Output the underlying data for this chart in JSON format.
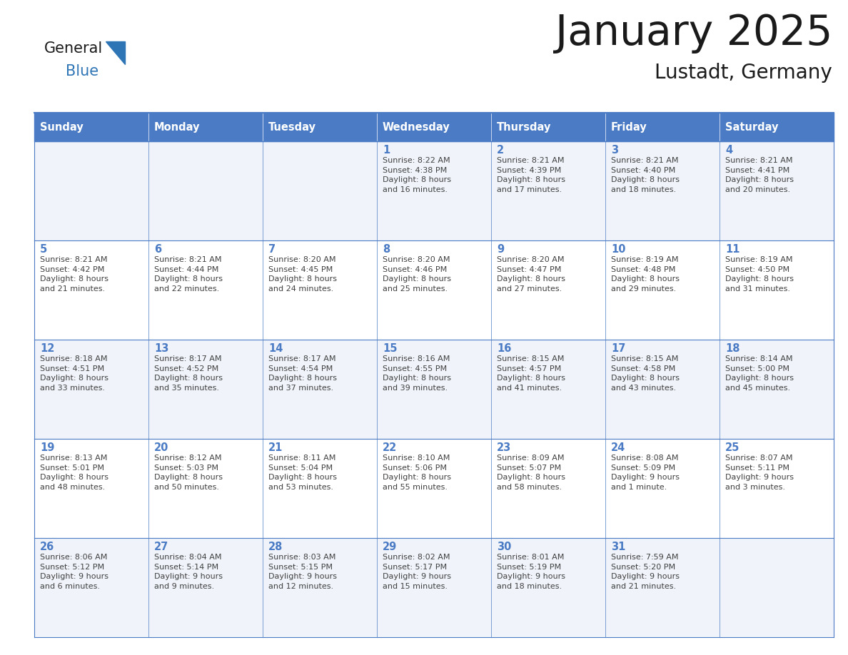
{
  "title": "January 2025",
  "subtitle": "Lustadt, Germany",
  "days_of_week": [
    "Sunday",
    "Monday",
    "Tuesday",
    "Wednesday",
    "Thursday",
    "Friday",
    "Saturday"
  ],
  "header_bg": "#4A7BC4",
  "header_text": "#FFFFFF",
  "cell_bg_light": "#F0F4FA",
  "cell_bg_white": "#FFFFFF",
  "grid_color": "#4A7BC4",
  "day_num_color": "#4A7BC4",
  "cell_text_color": "#404040",
  "title_color": "#1a1a1a",
  "logo_general_color": "#1a1a1a",
  "logo_blue_color": "#2E75B6",
  "logo_triangle_color": "#2E75B6",
  "figsize": [
    11.88,
    9.18
  ],
  "dpi": 100,
  "calendar": [
    [
      {
        "day": "",
        "text": ""
      },
      {
        "day": "",
        "text": ""
      },
      {
        "day": "",
        "text": ""
      },
      {
        "day": "1",
        "text": "Sunrise: 8:22 AM\nSunset: 4:38 PM\nDaylight: 8 hours\nand 16 minutes."
      },
      {
        "day": "2",
        "text": "Sunrise: 8:21 AM\nSunset: 4:39 PM\nDaylight: 8 hours\nand 17 minutes."
      },
      {
        "day": "3",
        "text": "Sunrise: 8:21 AM\nSunset: 4:40 PM\nDaylight: 8 hours\nand 18 minutes."
      },
      {
        "day": "4",
        "text": "Sunrise: 8:21 AM\nSunset: 4:41 PM\nDaylight: 8 hours\nand 20 minutes."
      }
    ],
    [
      {
        "day": "5",
        "text": "Sunrise: 8:21 AM\nSunset: 4:42 PM\nDaylight: 8 hours\nand 21 minutes."
      },
      {
        "day": "6",
        "text": "Sunrise: 8:21 AM\nSunset: 4:44 PM\nDaylight: 8 hours\nand 22 minutes."
      },
      {
        "day": "7",
        "text": "Sunrise: 8:20 AM\nSunset: 4:45 PM\nDaylight: 8 hours\nand 24 minutes."
      },
      {
        "day": "8",
        "text": "Sunrise: 8:20 AM\nSunset: 4:46 PM\nDaylight: 8 hours\nand 25 minutes."
      },
      {
        "day": "9",
        "text": "Sunrise: 8:20 AM\nSunset: 4:47 PM\nDaylight: 8 hours\nand 27 minutes."
      },
      {
        "day": "10",
        "text": "Sunrise: 8:19 AM\nSunset: 4:48 PM\nDaylight: 8 hours\nand 29 minutes."
      },
      {
        "day": "11",
        "text": "Sunrise: 8:19 AM\nSunset: 4:50 PM\nDaylight: 8 hours\nand 31 minutes."
      }
    ],
    [
      {
        "day": "12",
        "text": "Sunrise: 8:18 AM\nSunset: 4:51 PM\nDaylight: 8 hours\nand 33 minutes."
      },
      {
        "day": "13",
        "text": "Sunrise: 8:17 AM\nSunset: 4:52 PM\nDaylight: 8 hours\nand 35 minutes."
      },
      {
        "day": "14",
        "text": "Sunrise: 8:17 AM\nSunset: 4:54 PM\nDaylight: 8 hours\nand 37 minutes."
      },
      {
        "day": "15",
        "text": "Sunrise: 8:16 AM\nSunset: 4:55 PM\nDaylight: 8 hours\nand 39 minutes."
      },
      {
        "day": "16",
        "text": "Sunrise: 8:15 AM\nSunset: 4:57 PM\nDaylight: 8 hours\nand 41 minutes."
      },
      {
        "day": "17",
        "text": "Sunrise: 8:15 AM\nSunset: 4:58 PM\nDaylight: 8 hours\nand 43 minutes."
      },
      {
        "day": "18",
        "text": "Sunrise: 8:14 AM\nSunset: 5:00 PM\nDaylight: 8 hours\nand 45 minutes."
      }
    ],
    [
      {
        "day": "19",
        "text": "Sunrise: 8:13 AM\nSunset: 5:01 PM\nDaylight: 8 hours\nand 48 minutes."
      },
      {
        "day": "20",
        "text": "Sunrise: 8:12 AM\nSunset: 5:03 PM\nDaylight: 8 hours\nand 50 minutes."
      },
      {
        "day": "21",
        "text": "Sunrise: 8:11 AM\nSunset: 5:04 PM\nDaylight: 8 hours\nand 53 minutes."
      },
      {
        "day": "22",
        "text": "Sunrise: 8:10 AM\nSunset: 5:06 PM\nDaylight: 8 hours\nand 55 minutes."
      },
      {
        "day": "23",
        "text": "Sunrise: 8:09 AM\nSunset: 5:07 PM\nDaylight: 8 hours\nand 58 minutes."
      },
      {
        "day": "24",
        "text": "Sunrise: 8:08 AM\nSunset: 5:09 PM\nDaylight: 9 hours\nand 1 minute."
      },
      {
        "day": "25",
        "text": "Sunrise: 8:07 AM\nSunset: 5:11 PM\nDaylight: 9 hours\nand 3 minutes."
      }
    ],
    [
      {
        "day": "26",
        "text": "Sunrise: 8:06 AM\nSunset: 5:12 PM\nDaylight: 9 hours\nand 6 minutes."
      },
      {
        "day": "27",
        "text": "Sunrise: 8:04 AM\nSunset: 5:14 PM\nDaylight: 9 hours\nand 9 minutes."
      },
      {
        "day": "28",
        "text": "Sunrise: 8:03 AM\nSunset: 5:15 PM\nDaylight: 9 hours\nand 12 minutes."
      },
      {
        "day": "29",
        "text": "Sunrise: 8:02 AM\nSunset: 5:17 PM\nDaylight: 9 hours\nand 15 minutes."
      },
      {
        "day": "30",
        "text": "Sunrise: 8:01 AM\nSunset: 5:19 PM\nDaylight: 9 hours\nand 18 minutes."
      },
      {
        "day": "31",
        "text": "Sunrise: 7:59 AM\nSunset: 5:20 PM\nDaylight: 9 hours\nand 21 minutes."
      },
      {
        "day": "",
        "text": ""
      }
    ]
  ]
}
